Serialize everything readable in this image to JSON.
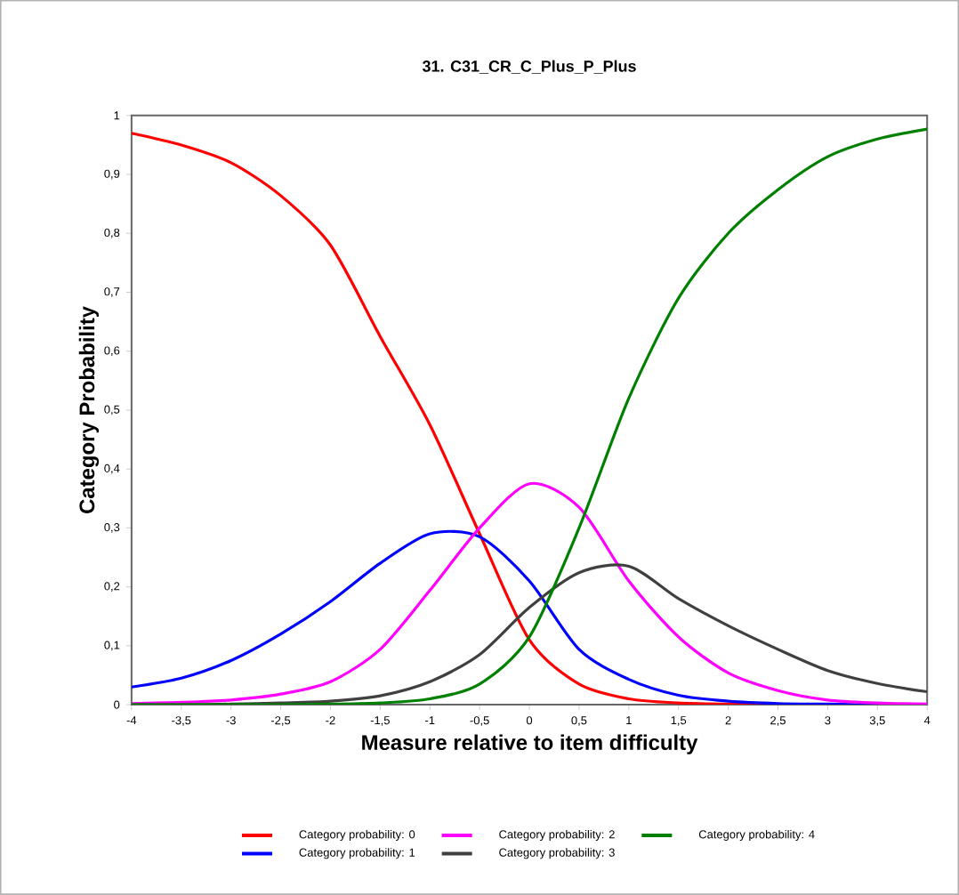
{
  "chart_data": {
    "type": "line",
    "title": "31. C31_CR_C_Plus_P_Plus",
    "xlabel": "Measure relative to item difficulty",
    "ylabel": "Category Probability",
    "x": [
      -4,
      -3.5,
      -3,
      -2.5,
      -2,
      -1.5,
      -1,
      -0.5,
      0,
      0.5,
      1,
      1.5,
      2,
      2.5,
      3,
      3.5,
      4
    ],
    "series": [
      {
        "name": "Category probability: 0",
        "color": "#ff0000",
        "values": [
          0.97,
          0.95,
          0.92,
          0.864,
          0.78,
          0.625,
          0.475,
          0.29,
          0.11,
          0.035,
          0.01,
          0.003,
          0.001,
          0,
          null,
          null,
          null
        ]
      },
      {
        "name": "Category probability: 1",
        "color": "#0000ff",
        "values": [
          0.03,
          0.045,
          0.075,
          0.12,
          0.175,
          0.24,
          0.29,
          0.285,
          0.21,
          0.094,
          0.043,
          0.016,
          0.006,
          0.002,
          0.001,
          0,
          0
        ]
      },
      {
        "name": "Category probability: 2",
        "color": "#ff00ff",
        "values": [
          0.002,
          0.004,
          0.008,
          0.018,
          0.039,
          0.094,
          0.194,
          0.3,
          0.375,
          0.335,
          0.21,
          0.115,
          0.054,
          0.024,
          0.008,
          0.003,
          0.001
        ]
      },
      {
        "name": "Category probability: 3",
        "color": "#404040",
        "values": [
          0,
          0,
          0.001,
          0.003,
          0.006,
          0.015,
          0.039,
          0.085,
          0.165,
          0.224,
          0.235,
          0.18,
          0.134,
          0.094,
          0.058,
          0.036,
          0.022
        ]
      },
      {
        "name": "Category probability: 4",
        "color": "#008000",
        "values": [
          0,
          0,
          0,
          0,
          0.001,
          0.003,
          0.01,
          0.035,
          0.115,
          0.3,
          0.52,
          0.69,
          0.8,
          0.874,
          0.93,
          0.96,
          0.977
        ]
      }
    ],
    "xlim": [
      -4,
      4
    ],
    "ylim": [
      0,
      1
    ],
    "xticks": [
      -4,
      {
        "value": -3.5,
        "label": "-3,5"
      },
      -3,
      {
        "value": -2.5,
        "label": "-2,5"
      },
      -2,
      {
        "value": -1.5,
        "label": "-1,5"
      },
      -1,
      {
        "value": -0.5,
        "label": "-0,5"
      },
      0,
      {
        "value": 0.5,
        "label": "0,5"
      },
      1,
      {
        "value": 1.5,
        "label": "1,5"
      },
      2,
      {
        "value": 2.5,
        "label": "2,5"
      },
      3,
      {
        "value": 3.5,
        "label": "3,5"
      },
      4
    ],
    "yticks": [
      0,
      {
        "value": 0.1,
        "label": "0,1"
      },
      {
        "value": 0.2,
        "label": "0,2"
      },
      {
        "value": 0.3,
        "label": "0,3"
      },
      {
        "value": 0.4,
        "label": "0,4"
      },
      {
        "value": 0.5,
        "label": "0,5"
      },
      {
        "value": 0.6,
        "label": "0,6"
      },
      {
        "value": 0.7,
        "label": "0,7"
      },
      {
        "value": 0.8,
        "label": "0,8"
      },
      {
        "value": 0.9,
        "label": "0,9"
      },
      1
    ],
    "legend": "bottom"
  }
}
